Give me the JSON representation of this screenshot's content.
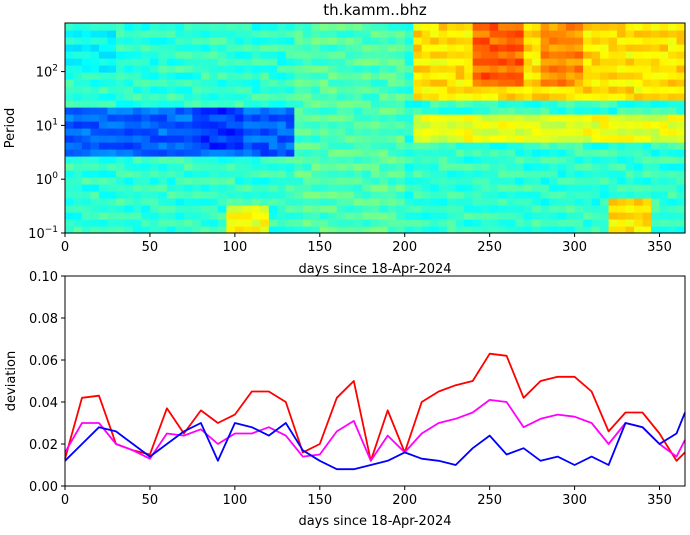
{
  "chart_data": [
    {
      "type": "heatmap",
      "title": "th.kamm..bhz",
      "xlabel": "days since 18-Apr-2024",
      "ylabel": "Period",
      "xlim": [
        0,
        365
      ],
      "ylim": [
        0.1,
        800
      ],
      "yscale": "log",
      "xticks": [
        "0",
        "50",
        "100",
        "150",
        "200",
        "250",
        "300",
        "350"
      ],
      "yticks": [
        {
          "value": 0.1,
          "base": "10",
          "exp": "−1"
        },
        {
          "value": 1,
          "base": "10",
          "exp": "0"
        },
        {
          "value": 10,
          "base": "10",
          "exp": "1"
        },
        {
          "value": 100,
          "base": "10",
          "exp": "2"
        }
      ],
      "colormap": "jet",
      "features": [
        {
          "x": [
            0,
            135
          ],
          "period": [
            3,
            25
          ],
          "level": 0.22
        },
        {
          "x": [
            75,
            105
          ],
          "period": [
            4,
            20
          ],
          "level": 0.18
        },
        {
          "x": [
            0,
            30
          ],
          "period": [
            100,
            800
          ],
          "level": 0.38
        },
        {
          "x": [
            135,
            200
          ],
          "period": [
            0.1,
            800
          ],
          "level": 0.45
        },
        {
          "x": [
            95,
            120
          ],
          "period": [
            0.1,
            0.3
          ],
          "level": 0.62
        },
        {
          "x": [
            205,
            365
          ],
          "period": [
            30,
            800
          ],
          "level": 0.65
        },
        {
          "x": [
            240,
            270
          ],
          "period": [
            60,
            800
          ],
          "level": 0.78
        },
        {
          "x": [
            280,
            305
          ],
          "period": [
            60,
            800
          ],
          "level": 0.74
        },
        {
          "x": [
            205,
            365
          ],
          "period": [
            5,
            15
          ],
          "level": 0.6
        },
        {
          "x": [
            320,
            345
          ],
          "period": [
            0.1,
            0.4
          ],
          "level": 0.65
        }
      ]
    },
    {
      "type": "line",
      "xlabel": "days since 18-Apr-2024",
      "ylabel": "deviation",
      "xlim": [
        0,
        365
      ],
      "ylim": [
        0,
        0.1
      ],
      "xticks": [
        "0",
        "50",
        "100",
        "150",
        "200",
        "250",
        "300",
        "350"
      ],
      "yticks": [
        "0.00",
        "0.02",
        "0.04",
        "0.06",
        "0.08",
        "0.10"
      ],
      "x": [
        0,
        10,
        20,
        30,
        40,
        50,
        60,
        70,
        80,
        90,
        100,
        110,
        120,
        130,
        140,
        150,
        160,
        170,
        180,
        190,
        200,
        210,
        220,
        230,
        240,
        250,
        260,
        270,
        280,
        290,
        300,
        310,
        320,
        330,
        340,
        350,
        360,
        365
      ],
      "series": [
        {
          "color": "#ff0000",
          "values": [
            0.013,
            0.042,
            0.043,
            0.02,
            0.017,
            0.015,
            0.037,
            0.025,
            0.036,
            0.03,
            0.034,
            0.045,
            0.045,
            0.04,
            0.016,
            0.02,
            0.042,
            0.05,
            0.012,
            0.036,
            0.016,
            0.04,
            0.045,
            0.048,
            0.05,
            0.063,
            0.062,
            0.042,
            0.05,
            0.052,
            0.052,
            0.045,
            0.026,
            0.035,
            0.035,
            0.025,
            0.012,
            0.016
          ]
        },
        {
          "color": "#ff00ff",
          "values": [
            0.016,
            0.03,
            0.03,
            0.02,
            0.017,
            0.013,
            0.025,
            0.024,
            0.027,
            0.02,
            0.025,
            0.025,
            0.028,
            0.024,
            0.014,
            0.015,
            0.026,
            0.031,
            0.012,
            0.024,
            0.016,
            0.025,
            0.03,
            0.032,
            0.035,
            0.041,
            0.04,
            0.028,
            0.032,
            0.034,
            0.033,
            0.03,
            0.02,
            0.03,
            0.028,
            0.02,
            0.014,
            0.022
          ]
        },
        {
          "color": "#0000ff",
          "values": [
            0.012,
            0.02,
            0.028,
            0.026,
            0.02,
            0.014,
            0.02,
            0.026,
            0.03,
            0.012,
            0.03,
            0.028,
            0.024,
            0.03,
            0.017,
            0.012,
            0.008,
            0.008,
            0.01,
            0.012,
            0.016,
            0.013,
            0.012,
            0.01,
            0.018,
            0.024,
            0.015,
            0.018,
            0.012,
            0.014,
            0.01,
            0.014,
            0.01,
            0.03,
            0.028,
            0.02,
            0.025,
            0.035
          ]
        }
      ]
    }
  ]
}
